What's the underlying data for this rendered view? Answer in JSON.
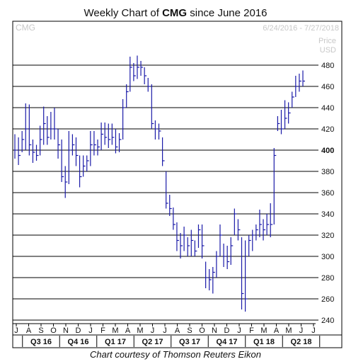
{
  "header": {
    "title_prefix": "Weekly Chart of ",
    "title_symbol": "CMG",
    "title_suffix": " since June 2016",
    "symbol": "CMG",
    "date_range": "6/24/2016 - 7/27/2018",
    "price_label": "Price",
    "currency_label": "USD"
  },
  "footer": {
    "credit": "Chart courtesy of Thomson Reuters Eikon"
  },
  "colors": {
    "bars": "#1a1aa8",
    "grid": "#000000",
    "text": "#111111",
    "faint": "#c8c8c8"
  },
  "chart_data": {
    "type": "ohlc",
    "title": "Weekly Chart of CMG since June 2016",
    "ylabel": "Price USD",
    "ylim": [
      240,
      490
    ],
    "grid": true,
    "highlighted_tick": "400",
    "y_ticks": [
      "480",
      "460",
      "440",
      "420",
      "400",
      "380",
      "360",
      "340",
      "320",
      "300",
      "280",
      "260",
      "240"
    ],
    "month_labels": [
      "J",
      "A",
      "S",
      "O",
      "N",
      "D",
      "J",
      "F",
      "M",
      "A",
      "M",
      "J",
      "J",
      "A",
      "S",
      "O",
      "N",
      "D",
      "J",
      "F",
      "M",
      "A",
      "M",
      "J",
      "J"
    ],
    "quarter_labels": [
      "Q3 16",
      "Q4 16",
      "Q1 17",
      "Q2 17",
      "Q3 17",
      "Q4 17",
      "Q1 18",
      "Q2 18"
    ],
    "weekly_bars": [
      {
        "h": 415,
        "l": 392,
        "c": 400
      },
      {
        "h": 412,
        "l": 386,
        "c": 395
      },
      {
        "h": 418,
        "l": 398,
        "c": 410
      },
      {
        "h": 444,
        "l": 400,
        "c": 420
      },
      {
        "h": 443,
        "l": 395,
        "c": 405
      },
      {
        "h": 410,
        "l": 388,
        "c": 398
      },
      {
        "h": 405,
        "l": 390,
        "c": 395
      },
      {
        "h": 423,
        "l": 395,
        "c": 410
      },
      {
        "h": 441,
        "l": 405,
        "c": 425
      },
      {
        "h": 432,
        "l": 405,
        "c": 412
      },
      {
        "h": 436,
        "l": 410,
        "c": 420
      },
      {
        "h": 440,
        "l": 410,
        "c": 420
      },
      {
        "h": 420,
        "l": 392,
        "c": 405
      },
      {
        "h": 410,
        "l": 370,
        "c": 375
      },
      {
        "h": 385,
        "l": 355,
        "c": 370
      },
      {
        "h": 418,
        "l": 368,
        "c": 400
      },
      {
        "h": 415,
        "l": 395,
        "c": 405
      },
      {
        "h": 412,
        "l": 385,
        "c": 395
      },
      {
        "h": 395,
        "l": 365,
        "c": 375
      },
      {
        "h": 395,
        "l": 375,
        "c": 385
      },
      {
        "h": 395,
        "l": 380,
        "c": 390
      },
      {
        "h": 418,
        "l": 385,
        "c": 405
      },
      {
        "h": 418,
        "l": 395,
        "c": 405
      },
      {
        "h": 410,
        "l": 395,
        "c": 403
      },
      {
        "h": 426,
        "l": 400,
        "c": 415
      },
      {
        "h": 426,
        "l": 405,
        "c": 412
      },
      {
        "h": 425,
        "l": 402,
        "c": 410
      },
      {
        "h": 425,
        "l": 405,
        "c": 412
      },
      {
        "h": 420,
        "l": 397,
        "c": 403
      },
      {
        "h": 416,
        "l": 398,
        "c": 410
      },
      {
        "h": 448,
        "l": 410,
        "c": 440
      },
      {
        "h": 462,
        "l": 440,
        "c": 455
      },
      {
        "h": 488,
        "l": 455,
        "c": 478
      },
      {
        "h": 482,
        "l": 465,
        "c": 470
      },
      {
        "h": 489,
        "l": 467,
        "c": 478
      },
      {
        "h": 484,
        "l": 470,
        "c": 478
      },
      {
        "h": 478,
        "l": 462,
        "c": 470
      },
      {
        "h": 468,
        "l": 455,
        "c": 460
      },
      {
        "h": 462,
        "l": 420,
        "c": 425
      },
      {
        "h": 428,
        "l": 410,
        "c": 420
      },
      {
        "h": 425,
        "l": 410,
        "c": 418
      },
      {
        "h": 412,
        "l": 385,
        "c": 390
      },
      {
        "h": 380,
        "l": 345,
        "c": 350
      },
      {
        "h": 358,
        "l": 338,
        "c": 345
      },
      {
        "h": 346,
        "l": 325,
        "c": 330
      },
      {
        "h": 332,
        "l": 305,
        "c": 315
      },
      {
        "h": 322,
        "l": 298,
        "c": 310
      },
      {
        "h": 328,
        "l": 305,
        "c": 320
      },
      {
        "h": 318,
        "l": 300,
        "c": 310
      },
      {
        "h": 325,
        "l": 300,
        "c": 315
      },
      {
        "h": 315,
        "l": 300,
        "c": 305
      },
      {
        "h": 330,
        "l": 308,
        "c": 325
      },
      {
        "h": 330,
        "l": 298,
        "c": 310
      },
      {
        "h": 295,
        "l": 270,
        "c": 280
      },
      {
        "h": 288,
        "l": 268,
        "c": 278
      },
      {
        "h": 290,
        "l": 265,
        "c": 285
      },
      {
        "h": 305,
        "l": 280,
        "c": 300
      },
      {
        "h": 330,
        "l": 300,
        "c": 320
      },
      {
        "h": 312,
        "l": 290,
        "c": 300
      },
      {
        "h": 310,
        "l": 288,
        "c": 295
      },
      {
        "h": 318,
        "l": 292,
        "c": 310
      },
      {
        "h": 345,
        "l": 320,
        "c": 340
      },
      {
        "h": 335,
        "l": 315,
        "c": 325
      },
      {
        "h": 318,
        "l": 250,
        "c": 265
      },
      {
        "h": 315,
        "l": 248,
        "c": 260
      },
      {
        "h": 320,
        "l": 300,
        "c": 315
      },
      {
        "h": 325,
        "l": 305,
        "c": 320
      },
      {
        "h": 330,
        "l": 315,
        "c": 325
      },
      {
        "h": 344,
        "l": 318,
        "c": 330
      },
      {
        "h": 335,
        "l": 315,
        "c": 325
      },
      {
        "h": 340,
        "l": 320,
        "c": 330
      },
      {
        "h": 350,
        "l": 318,
        "c": 330
      },
      {
        "h": 402,
        "l": 330,
        "c": 395
      },
      {
        "h": 432,
        "l": 418,
        "c": 425
      },
      {
        "h": 438,
        "l": 415,
        "c": 420
      },
      {
        "h": 447,
        "l": 420,
        "c": 430
      },
      {
        "h": 445,
        "l": 425,
        "c": 435
      },
      {
        "h": 455,
        "l": 440,
        "c": 450
      },
      {
        "h": 470,
        "l": 450,
        "c": 460
      },
      {
        "h": 472,
        "l": 455,
        "c": 465
      },
      {
        "h": 475,
        "l": 460,
        "c": 465
      }
    ]
  }
}
